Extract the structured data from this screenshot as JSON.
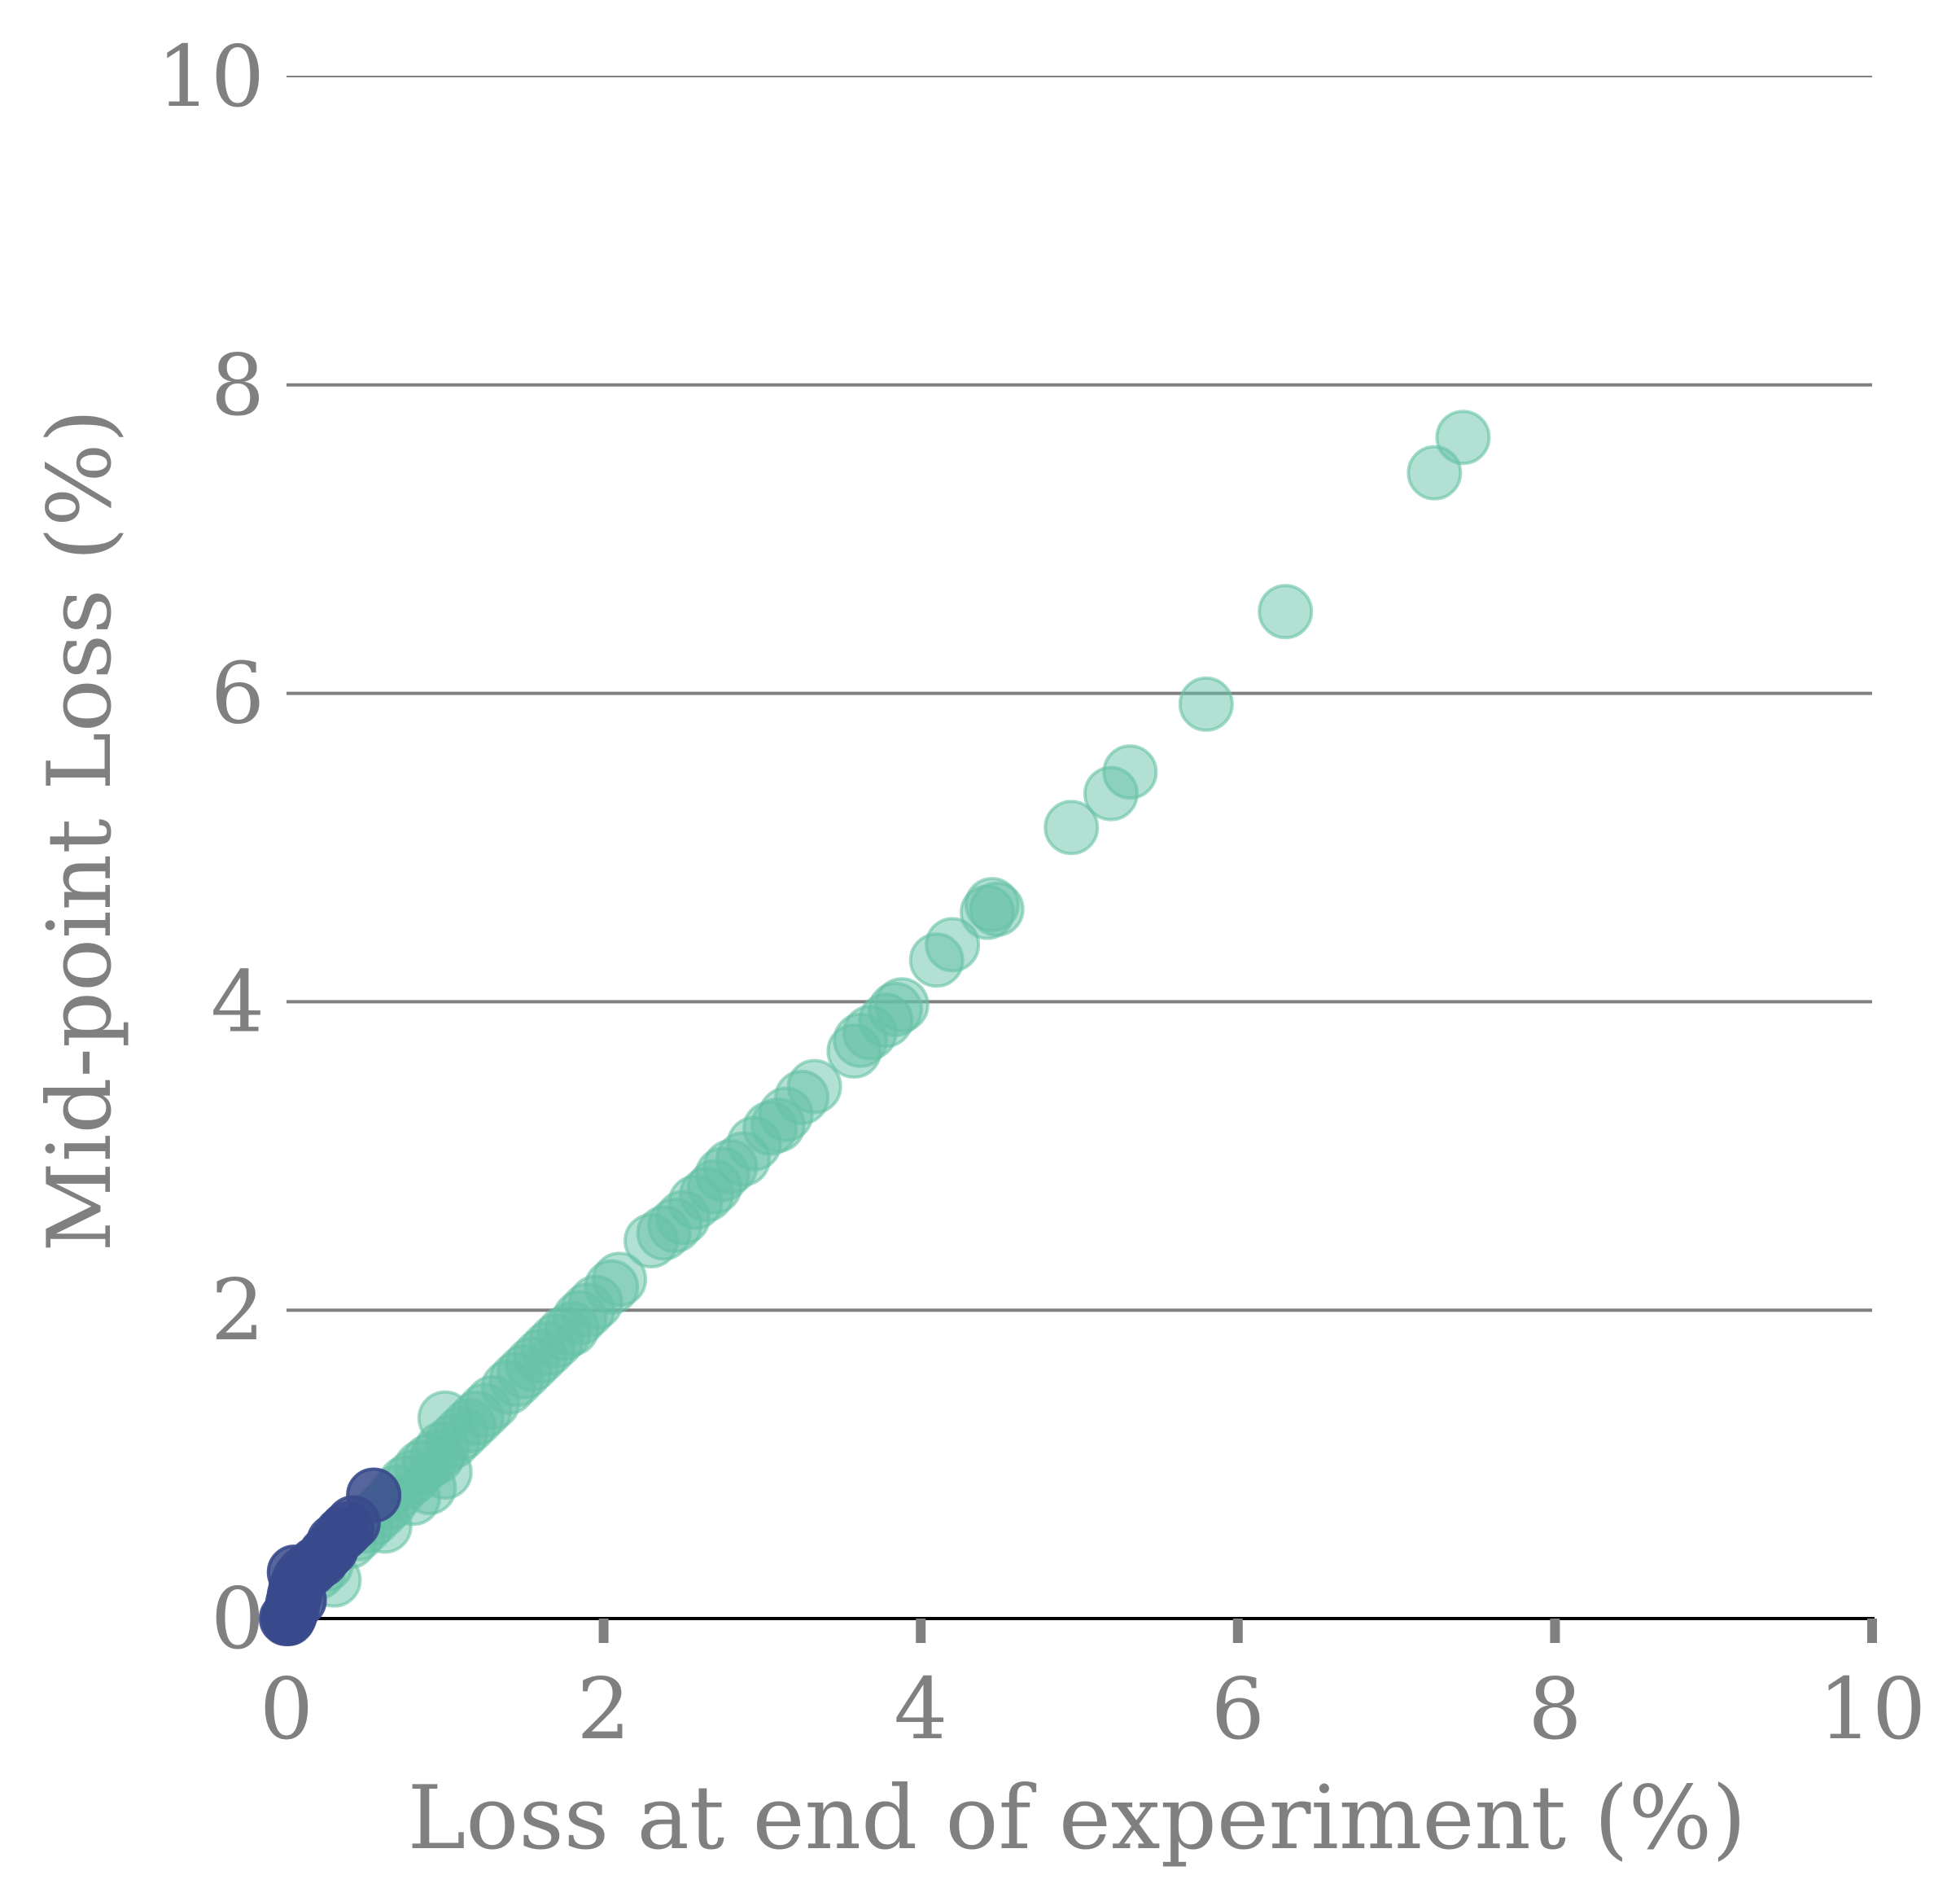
{
  "chart_data": {
    "type": "scatter",
    "title": "",
    "xlabel": "Loss at end of experiment (%)",
    "ylabel": "Mid-point Loss (%)",
    "xlim": [
      0,
      10
    ],
    "ylim": [
      0,
      10
    ],
    "xticks": [
      "0",
      "2",
      "4",
      "6",
      "8",
      "10"
    ],
    "yticks": [
      "0",
      "2",
      "4",
      "6",
      "8",
      "10"
    ],
    "grid": "horizontal",
    "legend": "none",
    "colors": {
      "series_teal": "#66c2a5",
      "series_navy": "#3a4a8c",
      "grid": "#808080",
      "axis": "#000000",
      "text": "#808080"
    },
    "series": [
      {
        "color": "#66c2a5",
        "points": [
          [
            7.42,
            7.66
          ],
          [
            7.24,
            7.43
          ],
          [
            6.3,
            6.53
          ],
          [
            5.8,
            5.93
          ],
          [
            5.32,
            5.49
          ],
          [
            5.2,
            5.35
          ],
          [
            4.95,
            5.13
          ],
          [
            4.45,
            4.63
          ],
          [
            4.48,
            4.6
          ],
          [
            4.42,
            4.58
          ],
          [
            4.2,
            4.37
          ],
          [
            4.1,
            4.27
          ],
          [
            3.88,
            3.98
          ],
          [
            3.84,
            3.95
          ],
          [
            3.78,
            3.88
          ],
          [
            3.68,
            3.8
          ],
          [
            3.62,
            3.75
          ],
          [
            3.58,
            3.68
          ],
          [
            3.33,
            3.45
          ],
          [
            3.25,
            3.38
          ],
          [
            3.15,
            3.27
          ],
          [
            3.1,
            3.2
          ],
          [
            3.05,
            3.18
          ],
          [
            2.95,
            3.08
          ],
          [
            2.88,
            2.98
          ],
          [
            2.8,
            2.93
          ],
          [
            2.75,
            2.88
          ],
          [
            2.7,
            2.8
          ],
          [
            2.65,
            2.75
          ],
          [
            2.58,
            2.7
          ],
          [
            2.5,
            2.6
          ],
          [
            2.45,
            2.55
          ],
          [
            2.38,
            2.5
          ],
          [
            2.3,
            2.45
          ],
          [
            2.1,
            2.2
          ],
          [
            2.05,
            2.15
          ],
          [
            1.95,
            2.05
          ],
          [
            1.9,
            2.0
          ],
          [
            1.85,
            1.95
          ],
          [
            1.8,
            1.88
          ],
          [
            1.75,
            1.85
          ],
          [
            1.7,
            1.8
          ],
          [
            1.65,
            1.75
          ],
          [
            1.6,
            1.7
          ],
          [
            1.55,
            1.65
          ],
          [
            1.5,
            1.6
          ],
          [
            1.45,
            1.55
          ],
          [
            1.4,
            1.5
          ],
          [
            1.3,
            1.4
          ],
          [
            1.25,
            1.35
          ],
          [
            1.2,
            1.3
          ],
          [
            1.15,
            1.25
          ],
          [
            1.1,
            1.2
          ],
          [
            1.05,
            1.15
          ],
          [
            1.0,
            1.3
          ],
          [
            0.98,
            1.1
          ],
          [
            0.95,
            1.05
          ],
          [
            0.9,
            1.02
          ],
          [
            0.85,
            0.98
          ],
          [
            0.8,
            0.92
          ],
          [
            0.75,
            0.88
          ],
          [
            0.7,
            0.82
          ],
          [
            0.65,
            0.75
          ],
          [
            0.6,
            0.7
          ],
          [
            0.55,
            0.65
          ],
          [
            0.62,
            0.6
          ],
          [
            0.5,
            0.6
          ],
          [
            0.45,
            0.55
          ],
          [
            0.4,
            0.5
          ],
          [
            0.3,
            0.25
          ],
          [
            0.2,
            0.3
          ],
          [
            0.25,
            0.35
          ],
          [
            0.9,
            0.85
          ],
          [
            1.0,
            0.95
          ],
          [
            0.8,
            0.78
          ]
        ]
      },
      {
        "color": "#3a4a8c",
        "points": [
          [
            0.55,
            0.8
          ],
          [
            0.42,
            0.62
          ],
          [
            0.38,
            0.58
          ],
          [
            0.35,
            0.55
          ],
          [
            0.3,
            0.5
          ],
          [
            0.28,
            0.45
          ],
          [
            0.25,
            0.42
          ],
          [
            0.22,
            0.38
          ],
          [
            0.18,
            0.35
          ],
          [
            0.15,
            0.32
          ],
          [
            0.12,
            0.3
          ],
          [
            0.1,
            0.28
          ],
          [
            0.08,
            0.25
          ],
          [
            0.06,
            0.2
          ],
          [
            0.05,
            0.15
          ],
          [
            0.04,
            0.1
          ],
          [
            0.03,
            0.05
          ],
          [
            0.02,
            0.02
          ],
          [
            0.01,
            0.0
          ],
          [
            0.0,
            0.0
          ],
          [
            0.05,
            0.3
          ],
          [
            0.08,
            0.12
          ]
        ]
      }
    ]
  }
}
